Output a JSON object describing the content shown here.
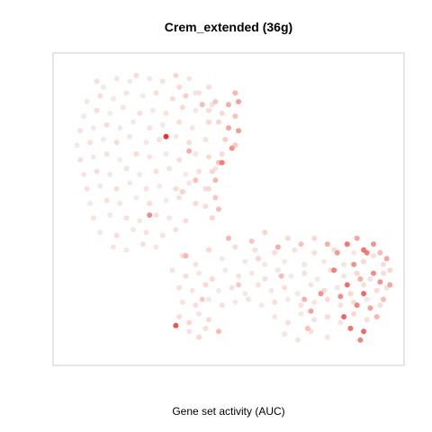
{
  "chart_data": {
    "type": "scatter",
    "title": "Crem_extended (36g)",
    "xlabel": "Gene set activity (AUC)",
    "ylabel": "",
    "axes_visible": false,
    "grid": false,
    "legend": "none",
    "xlim": [
      0,
      100
    ],
    "ylim": [
      0,
      100
    ],
    "colors": {
      "background": "#ffffff",
      "frame": "#cccccc",
      "low": "#eeeeee",
      "high": "#e00000"
    },
    "points": [
      [
        10,
        94,
        0.18
      ],
      [
        12,
        92,
        0.05
      ],
      [
        16,
        95,
        0.12
      ],
      [
        20,
        94,
        0.06
      ],
      [
        22,
        96,
        0.22
      ],
      [
        26,
        95,
        0.09
      ],
      [
        30,
        94,
        0.15
      ],
      [
        34,
        96,
        0.3
      ],
      [
        38,
        95,
        0.12
      ],
      [
        7,
        87,
        0.1
      ],
      [
        11,
        89,
        0.2
      ],
      [
        15,
        88,
        0.08
      ],
      [
        19,
        90,
        0.13
      ],
      [
        24,
        89,
        0.05
      ],
      [
        28,
        90,
        0.18
      ],
      [
        33,
        88,
        0.25
      ],
      [
        37,
        89,
        0.1
      ],
      [
        41,
        90,
        0.16
      ],
      [
        6,
        82,
        0.08
      ],
      [
        10,
        84,
        0.22
      ],
      [
        14,
        83,
        0.05
      ],
      [
        18,
        85,
        0.12
      ],
      [
        23,
        83,
        0.19
      ],
      [
        27,
        84,
        0.07
      ],
      [
        31,
        83,
        0.14
      ],
      [
        36,
        85,
        0.28
      ],
      [
        40,
        84,
        0.1
      ],
      [
        45,
        86,
        0.2
      ],
      [
        5,
        77,
        0.15
      ],
      [
        9,
        78,
        0.06
      ],
      [
        13,
        79,
        0.24
      ],
      [
        17,
        78,
        0.1
      ],
      [
        21,
        80,
        0.05
      ],
      [
        26,
        78,
        0.16
      ],
      [
        30,
        79,
        0.09
      ],
      [
        35,
        80,
        0.21
      ],
      [
        39,
        78,
        0.12
      ],
      [
        44,
        80,
        0.26
      ],
      [
        4,
        72,
        0.09
      ],
      [
        8,
        73,
        0.18
      ],
      [
        12,
        74,
        0.07
      ],
      [
        16,
        73,
        0.25
      ],
      [
        20,
        75,
        0.11
      ],
      [
        25,
        73,
        0.06
      ],
      [
        29,
        74,
        0.17
      ],
      [
        34,
        75,
        0.1
      ],
      [
        38,
        73,
        0.22
      ],
      [
        43,
        74,
        0.14
      ],
      [
        5,
        67,
        0.2
      ],
      [
        9,
        68,
        0.08
      ],
      [
        13,
        69,
        0.15
      ],
      [
        17,
        67,
        0.05
      ],
      [
        22,
        69,
        0.23
      ],
      [
        26,
        68,
        0.12
      ],
      [
        31,
        69,
        0.07
      ],
      [
        35,
        67,
        0.19
      ],
      [
        40,
        69,
        0.11
      ],
      [
        44,
        68,
        0.25
      ],
      [
        6,
        62,
        0.11
      ],
      [
        10,
        63,
        0.24
      ],
      [
        14,
        62,
        0.09
      ],
      [
        19,
        64,
        0.16
      ],
      [
        23,
        62,
        0.06
      ],
      [
        28,
        63,
        0.2
      ],
      [
        32,
        64,
        0.13
      ],
      [
        37,
        62,
        0.08
      ],
      [
        41,
        63,
        0.18
      ],
      [
        46,
        64,
        0.12
      ],
      [
        7,
        57,
        0.17
      ],
      [
        11,
        58,
        0.06
      ],
      [
        16,
        57,
        0.21
      ],
      [
        20,
        59,
        0.1
      ],
      [
        25,
        57,
        0.15
      ],
      [
        29,
        58,
        0.08
      ],
      [
        34,
        57,
        0.24
      ],
      [
        38,
        59,
        0.13
      ],
      [
        43,
        57,
        0.19
      ],
      [
        8,
        52,
        0.08
      ],
      [
        13,
        53,
        0.19
      ],
      [
        17,
        52,
        0.12
      ],
      [
        22,
        54,
        0.05
      ],
      [
        26,
        52,
        0.22
      ],
      [
        31,
        53,
        0.1
      ],
      [
        35,
        54,
        0.16
      ],
      [
        40,
        52,
        0.27
      ],
      [
        9,
        47,
        0.14
      ],
      [
        14,
        48,
        0.07
      ],
      [
        19,
        47,
        0.2
      ],
      [
        23,
        46,
        0.11
      ],
      [
        28,
        48,
        0.18
      ],
      [
        32,
        47,
        0.09
      ],
      [
        37,
        46,
        0.23
      ],
      [
        11,
        42,
        0.1
      ],
      [
        16,
        41,
        0.22
      ],
      [
        21,
        43,
        0.08
      ],
      [
        25,
        42,
        0.16
      ],
      [
        30,
        41,
        0.12
      ],
      [
        34,
        43,
        0.2
      ],
      [
        15,
        37,
        0.12
      ],
      [
        19,
        36,
        0.06
      ],
      [
        24,
        38,
        0.18
      ],
      [
        28,
        37,
        0.1
      ],
      [
        35,
        92,
        0.25
      ],
      [
        37,
        89,
        0.32
      ],
      [
        40,
        90,
        0.15
      ],
      [
        42,
        86,
        0.4
      ],
      [
        44,
        84,
        0.22
      ],
      [
        46,
        87,
        0.36
      ],
      [
        48,
        83,
        0.28
      ],
      [
        50,
        86,
        0.45
      ],
      [
        47,
        80,
        0.3
      ],
      [
        50,
        78,
        0.48
      ],
      [
        49,
        74,
        0.33
      ],
      [
        51,
        71,
        0.55
      ],
      [
        48,
        69,
        0.25
      ],
      [
        47,
        66,
        0.38
      ],
      [
        45,
        63,
        0.3
      ],
      [
        46,
        60,
        0.42
      ],
      [
        44,
        57,
        0.28
      ],
      [
        46,
        54,
        0.36
      ],
      [
        43,
        51,
        0.24
      ],
      [
        47,
        50,
        0.4
      ],
      [
        45,
        47,
        0.3
      ],
      [
        52,
        90,
        0.42
      ],
      [
        53,
        87,
        0.5
      ],
      [
        52,
        82,
        0.38
      ],
      [
        53,
        77,
        0.52
      ],
      [
        52,
        72,
        0.35
      ],
      [
        44,
        92,
        0.2
      ],
      [
        31,
        75,
        0.9
      ],
      [
        38,
        70,
        0.45
      ],
      [
        40,
        60,
        0.38
      ],
      [
        36,
        56,
        0.32
      ],
      [
        48,
        66,
        0.62
      ],
      [
        26,
        48,
        0.58
      ],
      [
        50,
        40,
        0.42
      ],
      [
        36,
        34,
        0.22
      ],
      [
        40,
        31,
        0.15
      ],
      [
        44,
        36,
        0.28
      ],
      [
        48,
        33,
        0.12
      ],
      [
        52,
        37,
        0.2
      ],
      [
        55,
        32,
        0.08
      ],
      [
        58,
        36,
        0.18
      ],
      [
        61,
        31,
        0.1
      ],
      [
        64,
        35,
        0.22
      ],
      [
        67,
        32,
        0.07
      ],
      [
        70,
        36,
        0.16
      ],
      [
        73,
        31,
        0.12
      ],
      [
        76,
        35,
        0.2
      ],
      [
        79,
        32,
        0.09
      ],
      [
        82,
        36,
        0.24
      ],
      [
        85,
        31,
        0.14
      ],
      [
        88,
        35,
        0.1
      ],
      [
        91,
        32,
        0.26
      ],
      [
        94,
        34,
        0.18
      ],
      [
        97,
        31,
        0.22
      ],
      [
        33,
        29,
        0.14
      ],
      [
        37,
        27,
        0.2
      ],
      [
        41,
        28,
        0.1
      ],
      [
        45,
        26,
        0.25
      ],
      [
        49,
        29,
        0.06
      ],
      [
        53,
        27,
        0.16
      ],
      [
        57,
        28,
        0.08
      ],
      [
        61,
        26,
        0.19
      ],
      [
        65,
        29,
        0.11
      ],
      [
        69,
        27,
        0.05
      ],
      [
        73,
        28,
        0.17
      ],
      [
        77,
        26,
        0.09
      ],
      [
        81,
        29,
        0.22
      ],
      [
        85,
        27,
        0.13
      ],
      [
        89,
        28,
        0.28
      ],
      [
        93,
        26,
        0.16
      ],
      [
        97,
        28,
        0.24
      ],
      [
        99,
        29,
        0.3
      ],
      [
        35,
        23,
        0.2
      ],
      [
        39,
        22,
        0.12
      ],
      [
        43,
        24,
        0.28
      ],
      [
        47,
        22,
        0.08
      ],
      [
        51,
        23,
        0.18
      ],
      [
        55,
        21,
        0.06
      ],
      [
        59,
        24,
        0.15
      ],
      [
        63,
        22,
        0.1
      ],
      [
        67,
        23,
        0.2
      ],
      [
        71,
        21,
        0.08
      ],
      [
        75,
        24,
        0.14
      ],
      [
        79,
        22,
        0.25
      ],
      [
        83,
        23,
        0.11
      ],
      [
        87,
        21,
        0.3
      ],
      [
        91,
        24,
        0.18
      ],
      [
        95,
        22,
        0.26
      ],
      [
        98,
        23,
        0.2
      ],
      [
        36,
        18,
        0.15
      ],
      [
        40,
        17,
        0.22
      ],
      [
        44,
        19,
        0.1
      ],
      [
        48,
        17,
        0.18
      ],
      [
        52,
        18,
        0.07
      ],
      [
        56,
        19,
        0.14
      ],
      [
        60,
        17,
        0.1
      ],
      [
        64,
        18,
        0.22
      ],
      [
        68,
        19,
        0.08
      ],
      [
        72,
        17,
        0.16
      ],
      [
        76,
        18,
        0.12
      ],
      [
        80,
        19,
        0.28
      ],
      [
        84,
        17,
        0.15
      ],
      [
        88,
        18,
        0.24
      ],
      [
        92,
        19,
        0.12
      ],
      [
        96,
        17,
        0.2
      ],
      [
        35,
        13,
        0.22
      ],
      [
        38,
        11,
        0.3
      ],
      [
        41,
        14,
        0.14
      ],
      [
        44,
        12,
        0.25
      ],
      [
        64,
        13,
        0.12
      ],
      [
        68,
        11,
        0.18
      ],
      [
        72,
        14,
        0.08
      ],
      [
        76,
        12,
        0.15
      ],
      [
        80,
        13,
        0.24
      ],
      [
        84,
        11,
        0.14
      ],
      [
        88,
        14,
        0.3
      ],
      [
        92,
        12,
        0.18
      ],
      [
        38,
        8,
        0.16
      ],
      [
        41,
        6,
        0.28
      ],
      [
        43,
        9,
        0.2
      ],
      [
        67,
        7,
        0.1
      ],
      [
        71,
        5,
        0.14
      ],
      [
        75,
        8,
        0.2
      ],
      [
        80,
        6,
        0.12
      ],
      [
        57,
        39,
        0.36
      ],
      [
        61,
        42,
        0.3
      ],
      [
        65,
        37,
        0.45
      ],
      [
        68,
        40,
        0.25
      ],
      [
        72,
        38,
        0.38
      ],
      [
        76,
        40,
        0.28
      ],
      [
        80,
        38,
        0.45
      ],
      [
        83,
        35,
        0.52
      ],
      [
        86,
        38,
        0.6
      ],
      [
        89,
        40,
        0.48
      ],
      [
        91,
        36,
        0.66
      ],
      [
        94,
        38,
        0.55
      ],
      [
        96,
        35,
        0.4
      ],
      [
        98,
        33,
        0.48
      ],
      [
        37,
        34,
        0.42
      ],
      [
        42,
        19,
        0.35
      ],
      [
        34,
        10,
        0.78
      ],
      [
        47,
        8,
        0.4
      ],
      [
        66,
        27,
        0.4
      ],
      [
        73,
        19,
        0.45
      ],
      [
        75,
        15,
        0.5
      ],
      [
        74,
        9,
        0.38
      ],
      [
        78,
        21,
        0.55
      ],
      [
        82,
        29,
        0.62
      ],
      [
        84,
        20,
        0.58
      ],
      [
        85,
        13,
        0.72
      ],
      [
        86,
        24,
        0.68
      ],
      [
        87,
        9,
        0.66
      ],
      [
        88,
        31,
        0.55
      ],
      [
        89,
        17,
        0.6
      ],
      [
        90,
        26,
        0.45
      ],
      [
        91,
        21,
        0.7
      ],
      [
        92,
        35,
        0.62
      ],
      [
        93,
        16,
        0.5
      ],
      [
        94,
        28,
        0.58
      ],
      [
        95,
        13,
        0.42
      ],
      [
        96,
        25,
        0.55
      ],
      [
        97,
        19,
        0.4
      ],
      [
        99,
        24,
        0.48
      ],
      [
        91,
        8,
        0.7
      ],
      [
        90,
        5,
        0.6
      ],
      [
        59,
        33,
        0.3
      ],
      [
        53,
        24,
        0.35
      ],
      [
        86,
        38,
        0.52
      ]
    ]
  }
}
